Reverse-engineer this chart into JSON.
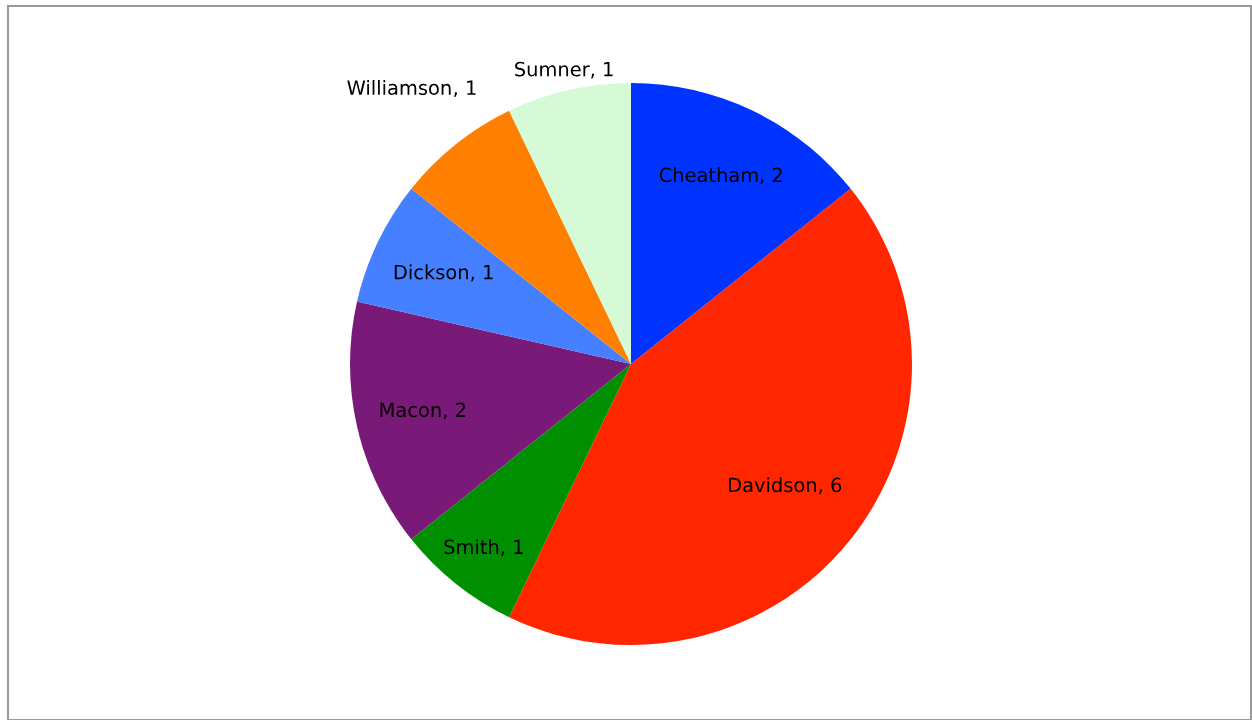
{
  "chart_data": {
    "type": "pie",
    "categories": [
      "Cheatham",
      "Davidson",
      "Smith",
      "Macon",
      "Dickson",
      "Williamson",
      "Sumner"
    ],
    "values": [
      2,
      6,
      1,
      2,
      1,
      1,
      1
    ],
    "colors": [
      "#0033ff",
      "#ff2600",
      "#008f00",
      "#7a1a78",
      "#4480ff",
      "#ff7f00",
      "#d5fad5"
    ],
    "value_labels": [
      ", 2",
      ", 6",
      ", 1",
      ", 2",
      ", 1",
      ", 1",
      ", 1"
    ]
  }
}
